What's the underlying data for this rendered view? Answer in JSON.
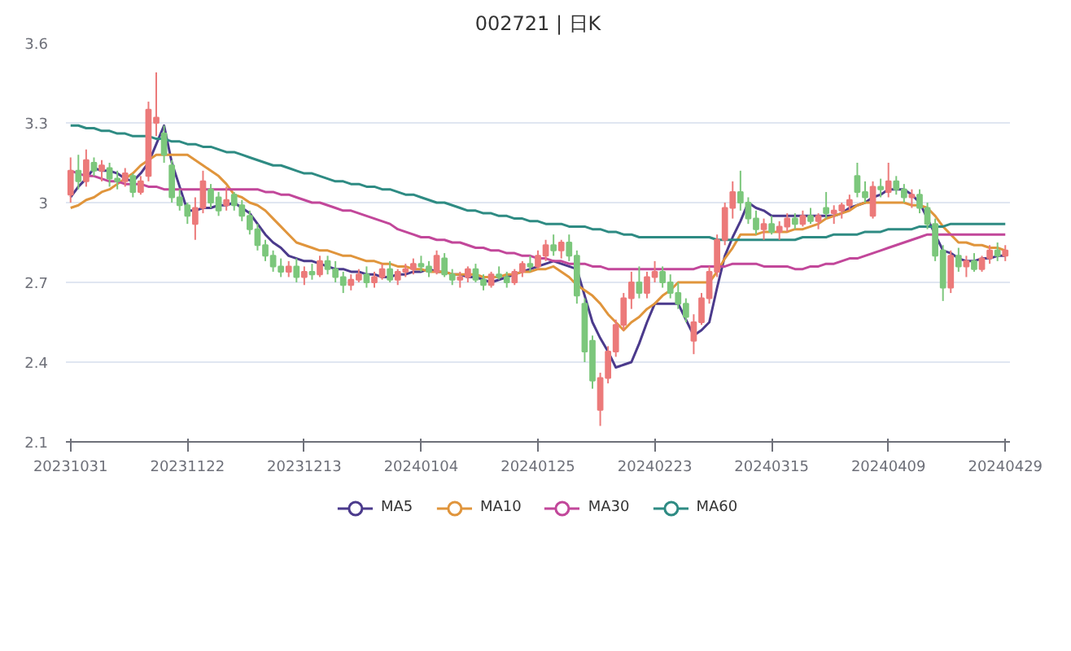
{
  "chart_data": {
    "type": "candlestick",
    "title": "002721 | 日K",
    "categories": [
      "20231031",
      null,
      null,
      null,
      null,
      null,
      null,
      null,
      null,
      null,
      null,
      null,
      null,
      null,
      null,
      "20231122",
      null,
      null,
      null,
      null,
      null,
      null,
      null,
      null,
      null,
      null,
      null,
      null,
      null,
      null,
      "20231213",
      null,
      null,
      null,
      null,
      null,
      null,
      null,
      null,
      null,
      null,
      null,
      null,
      null,
      null,
      "20240104",
      null,
      null,
      null,
      null,
      null,
      null,
      null,
      null,
      null,
      null,
      null,
      null,
      null,
      null,
      "20240125",
      null,
      null,
      null,
      null,
      null,
      null,
      null,
      null,
      null,
      null,
      null,
      null,
      null,
      null,
      "20240223",
      null,
      null,
      null,
      null,
      null,
      null,
      null,
      null,
      null,
      null,
      null,
      null,
      null,
      null,
      "20240315",
      null,
      null,
      null,
      null,
      null,
      null,
      null,
      null,
      null,
      null,
      null,
      null,
      null,
      null,
      "20240409",
      null,
      null,
      null,
      null,
      null,
      null,
      null,
      null,
      null,
      null,
      null,
      null,
      null,
      null,
      "20240429"
    ],
    "ohlc": [
      [
        3.03,
        3.17,
        3.0,
        3.12
      ],
      [
        3.12,
        3.18,
        3.05,
        3.08
      ],
      [
        3.08,
        3.2,
        3.06,
        3.16
      ],
      [
        3.15,
        3.17,
        3.1,
        3.12
      ],
      [
        3.12,
        3.16,
        3.08,
        3.14
      ],
      [
        3.13,
        3.15,
        3.06,
        3.09
      ],
      [
        3.09,
        3.12,
        3.05,
        3.08
      ],
      [
        3.08,
        3.13,
        3.06,
        3.11
      ],
      [
        3.1,
        3.11,
        3.02,
        3.04
      ],
      [
        3.04,
        3.1,
        3.03,
        3.08
      ],
      [
        3.1,
        3.38,
        3.08,
        3.35
      ],
      [
        3.3,
        3.49,
        3.25,
        3.32
      ],
      [
        3.26,
        3.29,
        3.15,
        3.18
      ],
      [
        3.14,
        3.16,
        3.0,
        3.02
      ],
      [
        3.02,
        3.05,
        2.97,
        2.99
      ],
      [
        2.99,
        3.0,
        2.92,
        2.95
      ],
      [
        2.92,
        3.02,
        2.86,
        2.98
      ],
      [
        2.98,
        3.12,
        2.96,
        3.08
      ],
      [
        3.05,
        3.07,
        2.98,
        3.0
      ],
      [
        3.02,
        3.04,
        2.95,
        2.97
      ],
      [
        2.99,
        3.06,
        2.97,
        3.01
      ],
      [
        3.03,
        3.04,
        2.97,
        2.99
      ],
      [
        2.99,
        3.01,
        2.93,
        2.95
      ],
      [
        2.95,
        2.97,
        2.88,
        2.9
      ],
      [
        2.9,
        2.92,
        2.82,
        2.84
      ],
      [
        2.84,
        2.86,
        2.78,
        2.8
      ],
      [
        2.8,
        2.82,
        2.74,
        2.76
      ],
      [
        2.76,
        2.79,
        2.72,
        2.74
      ],
      [
        2.74,
        2.78,
        2.72,
        2.76
      ],
      [
        2.76,
        2.79,
        2.7,
        2.72
      ],
      [
        2.72,
        2.76,
        2.69,
        2.74
      ],
      [
        2.74,
        2.77,
        2.71,
        2.73
      ],
      [
        2.73,
        2.8,
        2.72,
        2.78
      ],
      [
        2.78,
        2.8,
        2.73,
        2.75
      ],
      [
        2.75,
        2.78,
        2.7,
        2.72
      ],
      [
        2.72,
        2.74,
        2.66,
        2.69
      ],
      [
        2.69,
        2.73,
        2.67,
        2.71
      ],
      [
        2.71,
        2.75,
        2.7,
        2.73
      ],
      [
        2.73,
        2.76,
        2.68,
        2.7
      ],
      [
        2.7,
        2.74,
        2.68,
        2.72
      ],
      [
        2.72,
        2.77,
        2.71,
        2.75
      ],
      [
        2.75,
        2.78,
        2.7,
        2.71
      ],
      [
        2.71,
        2.75,
        2.69,
        2.74
      ],
      [
        2.74,
        2.77,
        2.72,
        2.75
      ],
      [
        2.75,
        2.79,
        2.73,
        2.77
      ],
      [
        2.77,
        2.8,
        2.74,
        2.76
      ],
      [
        2.76,
        2.78,
        2.72,
        2.74
      ],
      [
        2.74,
        2.82,
        2.73,
        2.8
      ],
      [
        2.79,
        2.81,
        2.72,
        2.73
      ],
      [
        2.73,
        2.75,
        2.69,
        2.71
      ],
      [
        2.71,
        2.74,
        2.68,
        2.72
      ],
      [
        2.72,
        2.76,
        2.7,
        2.75
      ],
      [
        2.75,
        2.77,
        2.7,
        2.71
      ],
      [
        2.71,
        2.73,
        2.67,
        2.69
      ],
      [
        2.69,
        2.74,
        2.68,
        2.73
      ],
      [
        2.73,
        2.76,
        2.71,
        2.72
      ],
      [
        2.72,
        2.74,
        2.68,
        2.7
      ],
      [
        2.7,
        2.75,
        2.69,
        2.74
      ],
      [
        2.74,
        2.78,
        2.72,
        2.77
      ],
      [
        2.77,
        2.8,
        2.74,
        2.76
      ],
      [
        2.76,
        2.82,
        2.75,
        2.8
      ],
      [
        2.8,
        2.86,
        2.78,
        2.84
      ],
      [
        2.84,
        2.88,
        2.8,
        2.82
      ],
      [
        2.82,
        2.86,
        2.79,
        2.85
      ],
      [
        2.85,
        2.88,
        2.78,
        2.8
      ],
      [
        2.8,
        2.82,
        2.62,
        2.65
      ],
      [
        2.62,
        2.64,
        2.4,
        2.44
      ],
      [
        2.48,
        2.5,
        2.3,
        2.33
      ],
      [
        2.22,
        2.36,
        2.16,
        2.34
      ],
      [
        2.34,
        2.46,
        2.32,
        2.44
      ],
      [
        2.44,
        2.56,
        2.42,
        2.54
      ],
      [
        2.54,
        2.66,
        2.52,
        2.64
      ],
      [
        2.64,
        2.74,
        2.6,
        2.7
      ],
      [
        2.7,
        2.76,
        2.64,
        2.66
      ],
      [
        2.66,
        2.74,
        2.64,
        2.72
      ],
      [
        2.72,
        2.78,
        2.7,
        2.74
      ],
      [
        2.74,
        2.76,
        2.68,
        2.7
      ],
      [
        2.7,
        2.73,
        2.64,
        2.66
      ],
      [
        2.66,
        2.7,
        2.6,
        2.62
      ],
      [
        2.62,
        2.64,
        2.55,
        2.57
      ],
      [
        2.48,
        2.58,
        2.43,
        2.55
      ],
      [
        2.55,
        2.66,
        2.54,
        2.64
      ],
      [
        2.64,
        2.76,
        2.62,
        2.74
      ],
      [
        2.74,
        2.88,
        2.72,
        2.86
      ],
      [
        2.86,
        3.0,
        2.84,
        2.98
      ],
      [
        2.98,
        3.08,
        2.94,
        3.04
      ],
      [
        3.04,
        3.12,
        2.97,
        3.0
      ],
      [
        3.0,
        3.02,
        2.92,
        2.94
      ],
      [
        2.94,
        2.97,
        2.88,
        2.9
      ],
      [
        2.9,
        2.94,
        2.86,
        2.92
      ],
      [
        2.92,
        2.95,
        2.88,
        2.89
      ],
      [
        2.89,
        2.93,
        2.86,
        2.91
      ],
      [
        2.91,
        2.96,
        2.89,
        2.94
      ],
      [
        2.94,
        2.96,
        2.9,
        2.92
      ],
      [
        2.92,
        2.97,
        2.91,
        2.95
      ],
      [
        2.95,
        2.98,
        2.92,
        2.93
      ],
      [
        2.93,
        2.96,
        2.9,
        2.95
      ],
      [
        2.98,
        3.04,
        2.94,
        2.96
      ],
      [
        2.96,
        2.99,
        2.92,
        2.97
      ],
      [
        2.97,
        3.0,
        2.94,
        2.99
      ],
      [
        2.99,
        3.03,
        2.97,
        3.01
      ],
      [
        3.1,
        3.15,
        3.02,
        3.04
      ],
      [
        3.04,
        3.08,
        3.0,
        3.02
      ],
      [
        2.95,
        3.08,
        2.94,
        3.06
      ],
      [
        3.06,
        3.09,
        3.02,
        3.05
      ],
      [
        3.04,
        3.15,
        3.02,
        3.08
      ],
      [
        3.08,
        3.1,
        3.03,
        3.05
      ],
      [
        3.05,
        3.07,
        3.0,
        3.02
      ],
      [
        3.02,
        3.05,
        2.98,
        3.03
      ],
      [
        3.03,
        3.05,
        2.96,
        2.98
      ],
      [
        2.98,
        3.0,
        2.9,
        2.92
      ],
      [
        2.92,
        2.94,
        2.78,
        2.8
      ],
      [
        2.82,
        2.84,
        2.63,
        2.68
      ],
      [
        2.68,
        2.82,
        2.66,
        2.8
      ],
      [
        2.8,
        2.83,
        2.74,
        2.76
      ],
      [
        2.76,
        2.8,
        2.72,
        2.78
      ],
      [
        2.78,
        2.81,
        2.74,
        2.75
      ],
      [
        2.75,
        2.8,
        2.74,
        2.79
      ],
      [
        2.79,
        2.84,
        2.77,
        2.82
      ],
      [
        2.82,
        2.85,
        2.78,
        2.8
      ],
      [
        2.8,
        2.84,
        2.78,
        2.82
      ]
    ],
    "colors": [
      "#ec7a7a",
      "#7cc77c",
      "#ec7a7a",
      "#7cc77c",
      "#ec7a7a",
      "#7cc77c",
      "#7cc77c",
      "#ec7a7a",
      "#7cc77c",
      "#ec7a7a",
      "#ec7a7a",
      "#ec7a7a",
      "#7cc77c",
      "#7cc77c",
      "#7cc77c",
      "#7cc77c",
      "#ec7a7a",
      "#ec7a7a",
      "#7cc77c",
      "#7cc77c",
      "#ec7a7a",
      "#7cc77c",
      "#7cc77c",
      "#7cc77c",
      "#7cc77c",
      "#7cc77c",
      "#7cc77c",
      "#7cc77c",
      "#ec7a7a",
      "#7cc77c",
      "#ec7a7a",
      "#7cc77c",
      "#ec7a7a",
      "#7cc77c",
      "#7cc77c",
      "#7cc77c",
      "#ec7a7a",
      "#ec7a7a",
      "#7cc77c",
      "#ec7a7a",
      "#ec7a7a",
      "#7cc77c",
      "#ec7a7a",
      "#ec7a7a",
      "#ec7a7a",
      "#7cc77c",
      "#7cc77c",
      "#ec7a7a",
      "#7cc77c",
      "#7cc77c",
      "#ec7a7a",
      "#ec7a7a",
      "#7cc77c",
      "#7cc77c",
      "#ec7a7a",
      "#7cc77c",
      "#7cc77c",
      "#ec7a7a",
      "#ec7a7a",
      "#7cc77c",
      "#ec7a7a",
      "#ec7a7a",
      "#7cc77c",
      "#ec7a7a",
      "#7cc77c",
      "#7cc77c",
      "#7cc77c",
      "#7cc77c",
      "#ec7a7a",
      "#ec7a7a",
      "#ec7a7a",
      "#ec7a7a",
      "#ec7a7a",
      "#7cc77c",
      "#ec7a7a",
      "#ec7a7a",
      "#7cc77c",
      "#7cc77c",
      "#7cc77c",
      "#7cc77c",
      "#ec7a7a",
      "#ec7a7a",
      "#ec7a7a",
      "#ec7a7a",
      "#ec7a7a",
      "#ec7a7a",
      "#7cc77c",
      "#7cc77c",
      "#7cc77c",
      "#ec7a7a",
      "#7cc77c",
      "#ec7a7a",
      "#ec7a7a",
      "#7cc77c",
      "#ec7a7a",
      "#7cc77c",
      "#ec7a7a",
      "#7cc77c",
      "#ec7a7a",
      "#ec7a7a",
      "#ec7a7a",
      "#7cc77c",
      "#7cc77c",
      "#ec7a7a",
      "#7cc77c",
      "#ec7a7a",
      "#7cc77c",
      "#7cc77c",
      "#ec7a7a",
      "#7cc77c",
      "#7cc77c",
      "#7cc77c",
      "#7cc77c",
      "#ec7a7a",
      "#7cc77c",
      "#ec7a7a",
      "#7cc77c",
      "#ec7a7a",
      "#ec7a7a",
      "#7cc77c",
      "#ec7a7a"
    ],
    "series": [
      {
        "name": "MA5",
        "type": "line",
        "color": "#4b3a8c",
        "values": [
          3.02,
          3.06,
          3.09,
          3.13,
          3.12,
          3.12,
          3.11,
          3.09,
          3.08,
          3.11,
          3.15,
          3.22,
          3.29,
          3.15,
          3.06,
          2.97,
          2.97,
          2.98,
          2.98,
          2.99,
          2.99,
          3.0,
          2.98,
          2.96,
          2.92,
          2.88,
          2.85,
          2.83,
          2.8,
          2.79,
          2.78,
          2.78,
          2.77,
          2.76,
          2.75,
          2.75,
          2.74,
          2.74,
          2.73,
          2.73,
          2.72,
          2.72,
          2.73,
          2.73,
          2.74,
          2.74,
          2.75,
          2.74,
          2.74,
          2.73,
          2.73,
          2.72,
          2.72,
          2.71,
          2.7,
          2.71,
          2.72,
          2.73,
          2.74,
          2.75,
          2.76,
          2.77,
          2.78,
          2.77,
          2.76,
          2.75,
          2.65,
          2.55,
          2.49,
          2.44,
          2.38,
          2.39,
          2.4,
          2.47,
          2.55,
          2.62,
          2.62,
          2.62,
          2.62,
          2.56,
          2.5,
          2.52,
          2.55,
          2.68,
          2.8,
          2.87,
          2.93,
          3.0,
          2.98,
          2.97,
          2.95,
          2.95,
          2.95,
          2.95,
          2.95,
          2.95,
          2.95,
          2.95,
          2.95,
          2.96,
          2.98,
          2.99,
          3.0,
          3.02,
          3.03,
          3.05,
          3.05,
          3.05,
          3.03,
          3.0,
          2.94,
          2.88,
          2.82,
          2.81,
          2.79,
          2.78,
          2.78,
          2.79,
          2.79,
          2.8,
          2.8
        ]
      },
      {
        "name": "MA10",
        "type": "line",
        "color": "#e0953c",
        "values": [
          2.98,
          2.99,
          3.01,
          3.02,
          3.04,
          3.05,
          3.07,
          3.09,
          3.11,
          3.14,
          3.16,
          3.18,
          3.18,
          3.18,
          3.18,
          3.18,
          3.16,
          3.14,
          3.12,
          3.1,
          3.07,
          3.03,
          3.02,
          3.0,
          2.99,
          2.97,
          2.94,
          2.91,
          2.88,
          2.85,
          2.84,
          2.83,
          2.82,
          2.82,
          2.81,
          2.8,
          2.8,
          2.79,
          2.78,
          2.78,
          2.77,
          2.77,
          2.76,
          2.76,
          2.75,
          2.75,
          2.74,
          2.74,
          2.74,
          2.73,
          2.73,
          2.73,
          2.73,
          2.72,
          2.72,
          2.72,
          2.73,
          2.73,
          2.74,
          2.74,
          2.75,
          2.75,
          2.76,
          2.74,
          2.72,
          2.69,
          2.67,
          2.65,
          2.62,
          2.58,
          2.55,
          2.52,
          2.55,
          2.57,
          2.6,
          2.62,
          2.65,
          2.67,
          2.7,
          2.7,
          2.7,
          2.7,
          2.7,
          2.74,
          2.79,
          2.83,
          2.88,
          2.88,
          2.88,
          2.89,
          2.89,
          2.89,
          2.89,
          2.9,
          2.9,
          2.91,
          2.92,
          2.94,
          2.95,
          2.96,
          2.97,
          2.99,
          3.0,
          3.0,
          3.0,
          3.0,
          3.0,
          3.0,
          2.99,
          2.99,
          2.98,
          2.95,
          2.91,
          2.88,
          2.85,
          2.85,
          2.84,
          2.84,
          2.83,
          2.83,
          2.82
        ]
      },
      {
        "name": "MA30",
        "type": "line",
        "color": "#c2479a",
        "values": [
          3.12,
          3.11,
          3.1,
          3.1,
          3.09,
          3.08,
          3.08,
          3.07,
          3.07,
          3.07,
          3.06,
          3.06,
          3.05,
          3.05,
          3.05,
          3.05,
          3.05,
          3.05,
          3.05,
          3.05,
          3.05,
          3.05,
          3.05,
          3.05,
          3.05,
          3.04,
          3.04,
          3.03,
          3.03,
          3.02,
          3.01,
          3.0,
          3.0,
          2.99,
          2.98,
          2.97,
          2.97,
          2.96,
          2.95,
          2.94,
          2.93,
          2.92,
          2.9,
          2.89,
          2.88,
          2.87,
          2.87,
          2.86,
          2.86,
          2.85,
          2.85,
          2.84,
          2.83,
          2.83,
          2.82,
          2.82,
          2.81,
          2.81,
          2.8,
          2.8,
          2.79,
          2.79,
          2.78,
          2.78,
          2.77,
          2.77,
          2.77,
          2.76,
          2.76,
          2.75,
          2.75,
          2.75,
          2.75,
          2.75,
          2.75,
          2.75,
          2.75,
          2.75,
          2.75,
          2.75,
          2.75,
          2.76,
          2.76,
          2.76,
          2.76,
          2.77,
          2.77,
          2.77,
          2.77,
          2.76,
          2.76,
          2.76,
          2.76,
          2.75,
          2.75,
          2.76,
          2.76,
          2.77,
          2.77,
          2.78,
          2.79,
          2.79,
          2.8,
          2.81,
          2.82,
          2.83,
          2.84,
          2.85,
          2.86,
          2.87,
          2.88,
          2.88,
          2.88,
          2.88,
          2.88,
          2.88,
          2.88,
          2.88,
          2.88,
          2.88,
          2.88
        ]
      },
      {
        "name": "MA60",
        "type": "line",
        "color": "#2e8b83",
        "values": [
          3.29,
          3.29,
          3.28,
          3.28,
          3.27,
          3.27,
          3.26,
          3.26,
          3.25,
          3.25,
          3.25,
          3.24,
          3.24,
          3.23,
          3.23,
          3.22,
          3.22,
          3.21,
          3.21,
          3.2,
          3.19,
          3.19,
          3.18,
          3.17,
          3.16,
          3.15,
          3.14,
          3.14,
          3.13,
          3.12,
          3.11,
          3.11,
          3.1,
          3.09,
          3.08,
          3.08,
          3.07,
          3.07,
          3.06,
          3.06,
          3.05,
          3.05,
          3.04,
          3.03,
          3.03,
          3.02,
          3.01,
          3.0,
          3.0,
          2.99,
          2.98,
          2.97,
          2.97,
          2.96,
          2.96,
          2.95,
          2.95,
          2.94,
          2.94,
          2.93,
          2.93,
          2.92,
          2.92,
          2.92,
          2.91,
          2.91,
          2.91,
          2.9,
          2.9,
          2.89,
          2.89,
          2.88,
          2.88,
          2.87,
          2.87,
          2.87,
          2.87,
          2.87,
          2.87,
          2.87,
          2.87,
          2.87,
          2.87,
          2.86,
          2.86,
          2.86,
          2.86,
          2.86,
          2.86,
          2.86,
          2.86,
          2.86,
          2.86,
          2.86,
          2.87,
          2.87,
          2.87,
          2.87,
          2.88,
          2.88,
          2.88,
          2.88,
          2.89,
          2.89,
          2.89,
          2.9,
          2.9,
          2.9,
          2.9,
          2.91,
          2.91,
          2.91,
          2.91,
          2.92,
          2.92,
          2.92,
          2.92,
          2.92,
          2.92,
          2.92,
          2.92
        ]
      }
    ],
    "ylim": [
      2.1,
      3.6
    ],
    "yticks": [
      2.1,
      2.4,
      2.7,
      3,
      3.3,
      3.6
    ],
    "grid": "y",
    "legend": "bottom",
    "marker": "none"
  }
}
